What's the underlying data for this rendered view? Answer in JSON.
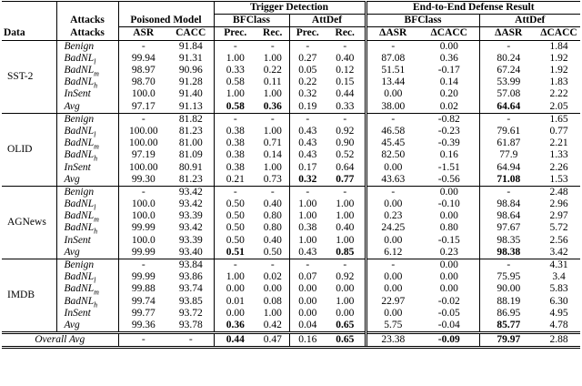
{
  "header": {
    "trigger_detection": "Trigger Detection",
    "end_to_end": "End-to-End Defense Result",
    "attacks": "Attacks",
    "poisoned_model": "Poisoned Model",
    "bfclass_td": "BFClass",
    "attdef_td": "AttDef",
    "bfclass_e2e": "BFClass",
    "attdef_e2e": "AttDef",
    "data": "Data",
    "attacks2": "Attacks",
    "columns": [
      "ASR",
      "CACC",
      "Prec.",
      "Rec.",
      "Prec.",
      "Rec.",
      "ΔASR",
      "ΔCACC",
      "ΔASR",
      "ΔCACC"
    ]
  },
  "groups": [
    {
      "data": "SST-2",
      "rows": [
        {
          "attack": {
            "name": "Benign"
          },
          "cells": [
            "-",
            "91.84",
            "-",
            "-",
            "-",
            "-",
            "-",
            "0.00",
            "-",
            "1.84"
          ]
        },
        {
          "attack": {
            "name": "BadNL",
            "sub": "l"
          },
          "cells": [
            "99.94",
            "91.31",
            "1.00",
            "1.00",
            "0.27",
            "0.40",
            "87.08",
            "0.36",
            "80.24",
            "1.92"
          ]
        },
        {
          "attack": {
            "name": "BadNL",
            "sub": "m"
          },
          "cells": [
            "98.97",
            "90.96",
            "0.33",
            "0.22",
            "0.05",
            "0.12",
            "51.51",
            "-0.17",
            "67.24",
            "1.92"
          ]
        },
        {
          "attack": {
            "name": "BadNL",
            "sub": "h"
          },
          "cells": [
            "98.70",
            "91.28",
            "0.58",
            "0.11",
            "0.22",
            "0.15",
            "13.44",
            "0.14",
            "53.99",
            "1.83"
          ]
        },
        {
          "attack": {
            "name": "InSent"
          },
          "cells": [
            "100.0",
            "91.40",
            "1.00",
            "1.00",
            "0.32",
            "0.44",
            "0.00",
            "0.20",
            "57.08",
            "2.22"
          ]
        },
        {
          "attack": {
            "name": "Avg"
          },
          "cells": [
            "97.17",
            "91.13",
            "0.58",
            "0.36",
            "0.19",
            "0.33",
            "38.00",
            "0.02",
            "64.64",
            "2.05"
          ],
          "bold": [
            2,
            3,
            8
          ]
        }
      ]
    },
    {
      "data": "OLID",
      "rows": [
        {
          "attack": {
            "name": "Benign"
          },
          "cells": [
            "-",
            "81.82",
            "-",
            "-",
            "-",
            "-",
            "-",
            "-0.82",
            "-",
            "1.65"
          ]
        },
        {
          "attack": {
            "name": "BadNL",
            "sub": "l"
          },
          "cells": [
            "100.00",
            "81.23",
            "0.38",
            "1.00",
            "0.43",
            "0.92",
            "46.58",
            "-0.23",
            "79.61",
            "0.77"
          ]
        },
        {
          "attack": {
            "name": "BadNL",
            "sub": "m"
          },
          "cells": [
            "100.00",
            "81.00",
            "0.38",
            "0.71",
            "0.43",
            "0.90",
            "45.45",
            "-0.39",
            "61.87",
            "2.21"
          ]
        },
        {
          "attack": {
            "name": "BadNL",
            "sub": "h"
          },
          "cells": [
            "97.19",
            "81.09",
            "0.38",
            "0.14",
            "0.43",
            "0.52",
            "82.50",
            "0.16",
            "77.9",
            "1.33"
          ]
        },
        {
          "attack": {
            "name": "InSent"
          },
          "cells": [
            "100.00",
            "80.91",
            "0.38",
            "1.00",
            "0.17",
            "0.64",
            "0.00",
            "-1.51",
            "64.94",
            "2.26"
          ]
        },
        {
          "attack": {
            "name": "Avg"
          },
          "cells": [
            "99.30",
            "81.23",
            "0.21",
            "0.73",
            "0.32",
            "0.77",
            "43.63",
            "-0.56",
            "71.08",
            "1.53"
          ],
          "bold": [
            4,
            5,
            8
          ]
        }
      ]
    },
    {
      "data": "AGNews",
      "rows": [
        {
          "attack": {
            "name": "Benign"
          },
          "cells": [
            "-",
            "93.42",
            "-",
            "-",
            "-",
            "-",
            "-",
            "0.00",
            "-",
            "2.48"
          ]
        },
        {
          "attack": {
            "name": "BadNL",
            "sub": "l"
          },
          "cells": [
            "100.0",
            "93.42",
            "0.50",
            "0.40",
            "1.00",
            "1.00",
            "0.00",
            "-0.10",
            "98.84",
            "2.96"
          ]
        },
        {
          "attack": {
            "name": "BadNL",
            "sub": "m"
          },
          "cells": [
            "100.0",
            "93.39",
            "0.50",
            "0.80",
            "1.00",
            "1.00",
            "0.23",
            "0.00",
            "98.64",
            "2.97"
          ]
        },
        {
          "attack": {
            "name": "BadNL",
            "sub": "h"
          },
          "cells": [
            "99.99",
            "93.42",
            "0.50",
            "0.80",
            "0.38",
            "0.40",
            "24.25",
            "0.80",
            "97.67",
            "5.72"
          ]
        },
        {
          "attack": {
            "name": "InSent"
          },
          "cells": [
            "100.0",
            "93.39",
            "0.50",
            "0.40",
            "1.00",
            "1.00",
            "0.00",
            "-0.15",
            "98.35",
            "2.56"
          ]
        },
        {
          "attack": {
            "name": "Avg"
          },
          "cells": [
            "99.99",
            "93.40",
            "0.51",
            "0.50",
            "0.43",
            "0.85",
            "6.12",
            "0.23",
            "98.38",
            "3.42"
          ],
          "bold": [
            2,
            5,
            8
          ]
        }
      ]
    },
    {
      "data": "IMDB",
      "rows": [
        {
          "attack": {
            "name": "Benign"
          },
          "cells": [
            "-",
            "93.84",
            "-",
            "-",
            "-",
            "-",
            "-",
            "0.00",
            "-",
            "4.31"
          ]
        },
        {
          "attack": {
            "name": "BadNL",
            "sub": "l"
          },
          "cells": [
            "99.99",
            "93.86",
            "1.00",
            "0.02",
            "0.07",
            "0.92",
            "0.00",
            "0.00",
            "75.95",
            "3.4"
          ]
        },
        {
          "attack": {
            "name": "BadNL",
            "sub": "m"
          },
          "cells": [
            "99.88",
            "93.74",
            "0.00",
            "0.00",
            "0.00",
            "0.00",
            "0.00",
            "0.00",
            "90.00",
            "5.83"
          ]
        },
        {
          "attack": {
            "name": "BadNL",
            "sub": "h"
          },
          "cells": [
            "99.74",
            "93.85",
            "0.01",
            "0.08",
            "0.00",
            "1.00",
            "22.97",
            "-0.02",
            "88.19",
            "6.30"
          ]
        },
        {
          "attack": {
            "name": "InSent"
          },
          "cells": [
            "99.77",
            "93.72",
            "0.00",
            "1.00",
            "0.00",
            "0.00",
            "0.00",
            "-0.05",
            "86.95",
            "4.95"
          ]
        },
        {
          "attack": {
            "name": "Avg"
          },
          "cells": [
            "99.36",
            "93.78",
            "0.36",
            "0.42",
            "0.04",
            "0.65",
            "5.75",
            "-0.04",
            "85.77",
            "4.78"
          ],
          "bold": [
            2,
            5,
            8
          ]
        }
      ]
    }
  ],
  "overall": {
    "label": "Overall Avg",
    "cells": [
      "-",
      "-",
      "0.44",
      "0.47",
      "0.16",
      "0.65",
      "23.38",
      "-0.09",
      "79.97",
      "2.88"
    ],
    "bold": [
      2,
      5,
      7,
      8
    ]
  }
}
